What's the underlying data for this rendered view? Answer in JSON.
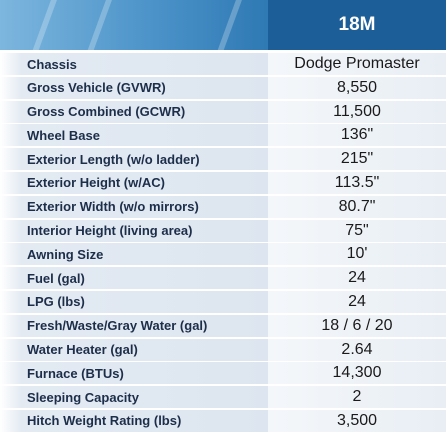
{
  "header": {
    "model": "18M"
  },
  "table": {
    "rows": [
      [
        "Chassis",
        "Dodge Promaster"
      ],
      [
        "Gross Vehicle (GVWR)",
        "8,550"
      ],
      [
        "Gross Combined (GCWR)",
        "11,500"
      ],
      [
        "Wheel Base",
        "136\""
      ],
      [
        "Exterior Length (w/o ladder)",
        "215\""
      ],
      [
        "Exterior Height (w/AC)",
        "113.5\""
      ],
      [
        "Exterior Width (w/o mirrors)",
        "80.7\""
      ],
      [
        "Interior Height (living area)",
        "75\""
      ],
      [
        "Awning Size",
        "10'"
      ],
      [
        "Fuel (gal)",
        "24"
      ],
      [
        "LPG (lbs)",
        "24"
      ],
      [
        "Fresh/Waste/Gray Water (gal)",
        "18 / 6 / 20"
      ],
      [
        "Water Heater (gal)",
        "2.64"
      ],
      [
        "Furnace (BTUs)",
        "14,300"
      ],
      [
        "Sleeping Capacity",
        "2"
      ],
      [
        "Hitch Weight Rating (lbs)",
        "3,500"
      ]
    ]
  }
}
